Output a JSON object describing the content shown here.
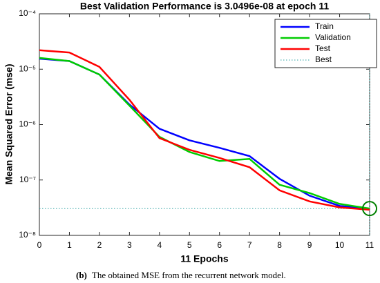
{
  "chart_data": {
    "type": "line",
    "title": "Best Validation Performance is 3.0496e-08 at epoch 11",
    "x_label": "11 Epochs",
    "y_label": "Mean Squared Error (mse)",
    "x": [
      0,
      1,
      2,
      3,
      4,
      5,
      6,
      7,
      8,
      9,
      10,
      11
    ],
    "xlim": [
      0,
      11
    ],
    "xticks": [
      0,
      1,
      2,
      3,
      4,
      5,
      6,
      7,
      8,
      9,
      10,
      11
    ],
    "ylim": [
      1e-08,
      0.0001
    ],
    "y_scale": "log",
    "yticks": [
      {
        "value": 1e-08,
        "label": "10⁻⁸"
      },
      {
        "value": 1e-07,
        "label": "10⁻⁷"
      },
      {
        "value": 1e-06,
        "label": "10⁻⁶"
      },
      {
        "value": 1e-05,
        "label": "10⁻⁵"
      },
      {
        "value": 0.0001,
        "label": "10⁻⁴"
      }
    ],
    "series": [
      {
        "name": "Train",
        "color": "#0000ff",
        "values": [
          1.55e-05,
          1.4e-05,
          8e-06,
          2.3e-06,
          8.4e-07,
          5.2e-07,
          3.8e-07,
          2.7e-07,
          1.05e-07,
          5.2e-08,
          3.4e-08,
          3e-08
        ]
      },
      {
        "name": "Validation",
        "color": "#00cc00",
        "values": [
          1.6e-05,
          1.4e-05,
          8e-06,
          2.2e-06,
          6e-07,
          3.2e-07,
          2.2e-07,
          2.4e-07,
          8.2e-08,
          5.8e-08,
          3.7e-08,
          3.0496e-08
        ]
      },
      {
        "name": "Test",
        "color": "#ff0000",
        "values": [
          2.2e-05,
          2e-05,
          1.1e-05,
          2.8e-06,
          5.7e-07,
          3.5e-07,
          2.5e-07,
          1.7e-07,
          6.5e-08,
          4.1e-08,
          3.2e-08,
          2.9e-08
        ]
      }
    ],
    "best": {
      "name": "Best",
      "color": "#2aa0a0",
      "epoch": 11,
      "value": 3.0496e-08,
      "marker_color": "#008000"
    },
    "legend": "upper right",
    "caption": {
      "label": "(b)",
      "text": "The obtained MSE from the recurrent network model."
    }
  }
}
